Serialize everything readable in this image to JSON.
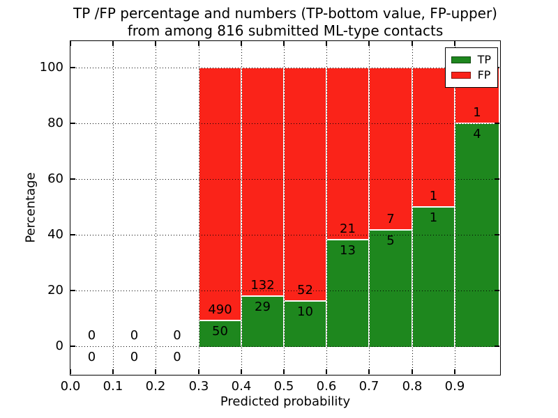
{
  "figure": {
    "title_line1": "TP /FP percentage and numbers (TP-bottom value, FP-upper)",
    "title_line2": "from among 816 submitted ML-type contacts"
  },
  "chart_data": {
    "type": "bar",
    "stacked": true,
    "normalized": "percentage",
    "title": "TP /FP percentage and numbers (TP-bottom value, FP-upper) from among 816 submitted ML-type contacts",
    "xlabel": "Predicted probability",
    "ylabel": "Percentage",
    "total_contacts": 816,
    "xlim": [
      0.0,
      1.0
    ],
    "ylim": [
      -10.5,
      110
    ],
    "grid": true,
    "x_ticks": [
      "0.0",
      "0.1",
      "0.2",
      "0.3",
      "0.4",
      "0.5",
      "0.6",
      "0.7",
      "0.8",
      "0.9"
    ],
    "y_ticks": [
      0,
      20,
      40,
      60,
      80,
      100
    ],
    "legend": {
      "position": "upper right",
      "entries": [
        {
          "label": "TP",
          "color": "#1e871e"
        },
        {
          "label": "FP",
          "color": "#fa2319"
        }
      ]
    },
    "bins": [
      {
        "range": [
          0.0,
          0.1
        ],
        "tp": 0,
        "fp": 0,
        "tp_pct": 0,
        "fp_pct": 0
      },
      {
        "range": [
          0.1,
          0.2
        ],
        "tp": 0,
        "fp": 0,
        "tp_pct": 0,
        "fp_pct": 0
      },
      {
        "range": [
          0.2,
          0.3
        ],
        "tp": 0,
        "fp": 0,
        "tp_pct": 0,
        "fp_pct": 0
      },
      {
        "range": [
          0.3,
          0.4
        ],
        "tp": 50,
        "fp": 490,
        "tp_pct": 9.26,
        "fp_pct": 90.74
      },
      {
        "range": [
          0.4,
          0.5
        ],
        "tp": 29,
        "fp": 132,
        "tp_pct": 18.01,
        "fp_pct": 81.99
      },
      {
        "range": [
          0.5,
          0.6
        ],
        "tp": 10,
        "fp": 52,
        "tp_pct": 16.13,
        "fp_pct": 83.87
      },
      {
        "range": [
          0.6,
          0.7
        ],
        "tp": 13,
        "fp": 21,
        "tp_pct": 38.24,
        "fp_pct": 61.76
      },
      {
        "range": [
          0.7,
          0.8
        ],
        "tp": 5,
        "fp": 7,
        "tp_pct": 41.67,
        "fp_pct": 58.33
      },
      {
        "range": [
          0.8,
          0.9
        ],
        "tp": 1,
        "fp": 1,
        "tp_pct": 50.0,
        "fp_pct": 50.0
      },
      {
        "range": [
          0.9,
          1.0
        ],
        "tp": 4,
        "fp": 1,
        "tp_pct": 80.0,
        "fp_pct": 20.0
      }
    ]
  }
}
